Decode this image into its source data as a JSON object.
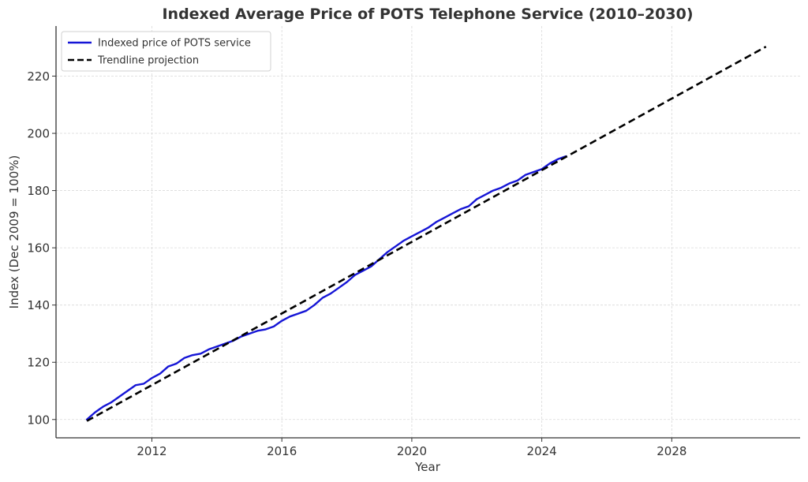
{
  "chart_data": {
    "type": "line",
    "title": "Indexed Average Price of POTS Telephone Service (2010–2030)",
    "xlabel": "Year",
    "ylabel": "Index (Dec 2009 = 100%)",
    "xlim": [
      2009.05,
      2031.95
    ],
    "ylim": [
      93.6,
      237.5
    ],
    "xticks": [
      2012,
      2016,
      2020,
      2024,
      2028
    ],
    "xtick_labels": [
      "2012",
      "2016",
      "2020",
      "2024",
      "2028"
    ],
    "yticks": [
      100,
      120,
      140,
      160,
      180,
      200,
      220
    ],
    "ytick_labels": [
      "100",
      "120",
      "140",
      "160",
      "180",
      "200",
      "220"
    ],
    "grid": true,
    "legend": {
      "position": "top-left",
      "entries": [
        {
          "label": "Indexed price of POTS service",
          "color": "#1515d6",
          "style": "solid"
        },
        {
          "label": "Trendline projection",
          "color": "#000000",
          "style": "dashed"
        }
      ]
    },
    "series": [
      {
        "name": "Indexed price of POTS service",
        "color": "#1515d6",
        "style": "solid",
        "x": [
          2010.0,
          2010.25,
          2010.5,
          2010.75,
          2011.0,
          2011.25,
          2011.5,
          2011.75,
          2012.0,
          2012.25,
          2012.5,
          2012.75,
          2013.0,
          2013.25,
          2013.5,
          2013.75,
          2014.0,
          2014.25,
          2014.5,
          2014.75,
          2015.0,
          2015.25,
          2015.5,
          2015.75,
          2016.0,
          2016.25,
          2016.5,
          2016.75,
          2017.0,
          2017.25,
          2017.5,
          2017.75,
          2018.0,
          2018.25,
          2018.5,
          2018.75,
          2019.0,
          2019.25,
          2019.5,
          2019.75,
          2020.0,
          2020.25,
          2020.5,
          2020.75,
          2021.0,
          2021.25,
          2021.5,
          2021.75,
          2022.0,
          2022.25,
          2022.5,
          2022.75,
          2023.0,
          2023.25,
          2023.5,
          2023.75,
          2024.0,
          2024.25,
          2024.5,
          2024.75
        ],
        "values": [
          100,
          102.5,
          104.5,
          106,
          108,
          110,
          112,
          112.5,
          114.5,
          116,
          118.5,
          119.5,
          121.5,
          122.5,
          123,
          124.5,
          125.5,
          126.5,
          127.5,
          129,
          130,
          131,
          131.5,
          132.5,
          134.5,
          136,
          137,
          138,
          140,
          142.5,
          144,
          146,
          148,
          150.5,
          152,
          153.5,
          156,
          158.5,
          160.5,
          162.5,
          164,
          165.5,
          167,
          169,
          170.5,
          172,
          173.5,
          174.5,
          177,
          178.5,
          180,
          181,
          182.5,
          183.5,
          185.5,
          186.5,
          187.5,
          189.5,
          191,
          192
        ]
      },
      {
        "name": "Trendline projection",
        "color": "#000000",
        "style": "dashed",
        "x": [
          2010.0,
          2030.9
        ],
        "values": [
          99.5,
          230.3
        ]
      }
    ]
  }
}
